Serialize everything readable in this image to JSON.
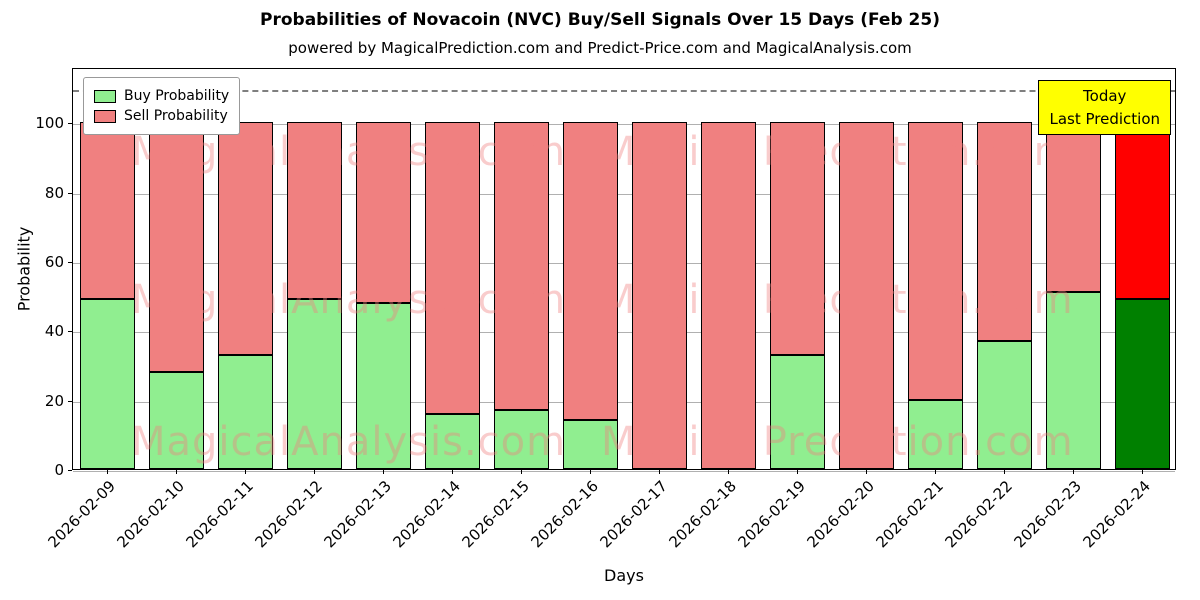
{
  "chart": {
    "title": "Probabilities of Novacoin (NVC) Buy/Sell Signals Over 15 Days (Feb 25)",
    "subtitle": "powered by MagicalPrediction.com and Predict-Price.com and MagicalAnalysis.com",
    "xlabel": "Days",
    "ylabel": "Probability",
    "annotation": {
      "line1": "Today",
      "line2": "Last Prediction",
      "bg_color": "#FFFF00"
    },
    "watermarks": [
      "MagicalAnalysis.com",
      "Magica Prediction.com"
    ]
  },
  "chart_data": {
    "type": "bar",
    "stacked": true,
    "title": "Probabilities of Novacoin (NVC) Buy/Sell Signals Over 15 Days (Feb 25)",
    "xlabel": "Days",
    "ylabel": "Probability",
    "categories": [
      "2026-02-09",
      "2026-02-10",
      "2026-02-11",
      "2026-02-12",
      "2026-02-13",
      "2026-02-14",
      "2026-02-15",
      "2026-02-16",
      "2026-02-17",
      "2026-02-18",
      "2026-02-19",
      "2026-02-20",
      "2026-02-21",
      "2026-02-22",
      "2026-02-23",
      "2026-02-24"
    ],
    "series": [
      {
        "name": "Buy Probability",
        "color": "#90EE90",
        "values": [
          49,
          28,
          33,
          49,
          48,
          16,
          17,
          14,
          0,
          0,
          33,
          0,
          20,
          37,
          51,
          49
        ]
      },
      {
        "name": "Sell Probability",
        "color": "#F08080",
        "values": [
          51,
          72,
          67,
          51,
          52,
          84,
          83,
          86,
          100,
          100,
          67,
          100,
          80,
          63,
          49,
          51
        ]
      }
    ],
    "highlight_last_bar": {
      "buy_color": "#008000",
      "sell_color": "#FF0000"
    },
    "ylim": [
      0,
      116
    ],
    "yticks": [
      0,
      20,
      40,
      60,
      80,
      100
    ],
    "dashed_line_y": 110,
    "grid": true,
    "legend_position": "upper left"
  }
}
